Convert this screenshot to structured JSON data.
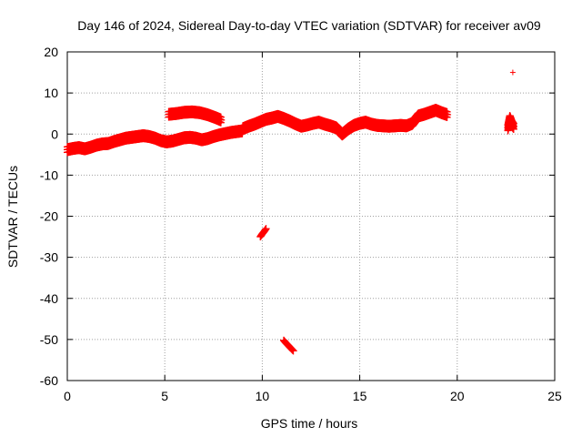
{
  "chart_data": {
    "type": "scatter",
    "title": "Day 146 of 2024, Sidereal Day-to-day VTEC variation (SDTVAR) for receiver av09",
    "xlabel": "GPS time / hours",
    "ylabel": "SDTVAR / TECUs",
    "xlim": [
      0,
      25
    ],
    "ylim": [
      -60,
      20
    ],
    "xticks": [
      0,
      5,
      10,
      15,
      20,
      25
    ],
    "yticks": [
      -60,
      -50,
      -40,
      -30,
      -20,
      -10,
      0,
      10,
      20
    ],
    "grid": true,
    "marker": "+",
    "series_color": "#ff0000",
    "segments": [
      {
        "name": "main-trace-early",
        "x": [
          0.0,
          0.3,
          0.6,
          0.9,
          1.2,
          1.5,
          1.8,
          2.1,
          2.4,
          2.7,
          3.0,
          3.3,
          3.6,
          3.9,
          4.2,
          4.5,
          4.8,
          5.1,
          5.4,
          5.7,
          6.0,
          6.3,
          6.6,
          6.9,
          7.2,
          7.5,
          7.8,
          8.1,
          8.4,
          8.7,
          9.0
        ],
        "y": [
          -3.8,
          -3.5,
          -3.3,
          -3.6,
          -3.2,
          -2.7,
          -2.4,
          -2.3,
          -1.8,
          -1.4,
          -1.0,
          -0.8,
          -0.6,
          -0.4,
          -0.6,
          -1.0,
          -1.6,
          -1.9,
          -1.7,
          -1.3,
          -0.9,
          -0.8,
          -1.0,
          -1.4,
          -1.1,
          -0.6,
          -0.2,
          0.1,
          0.4,
          0.6,
          0.8
        ]
      },
      {
        "name": "main-trace-arc",
        "x": [
          5.2,
          5.6,
          6.0,
          6.4,
          6.8,
          7.2,
          7.6,
          7.9
        ],
        "y": [
          4.8,
          5.0,
          5.3,
          5.4,
          5.2,
          4.7,
          4.0,
          3.4
        ]
      },
      {
        "name": "main-trace-late",
        "x": [
          9.0,
          9.3,
          9.6,
          9.9,
          10.2,
          10.5,
          10.8,
          11.1,
          11.4,
          11.7,
          12.0,
          12.3,
          12.6,
          12.9,
          13.2,
          13.5,
          13.8,
          14.1,
          14.4,
          14.7,
          15.0,
          15.3,
          15.6,
          15.9,
          16.2,
          16.5,
          16.8,
          17.1,
          17.4,
          17.7,
          18.0,
          18.3,
          18.6,
          18.9,
          19.2,
          19.5
        ],
        "y": [
          1.3,
          1.9,
          2.4,
          3.0,
          3.6,
          3.9,
          4.3,
          3.8,
          3.2,
          2.5,
          1.9,
          2.2,
          2.6,
          2.9,
          2.4,
          2.0,
          1.5,
          0.0,
          1.2,
          2.1,
          2.6,
          2.9,
          2.4,
          2.1,
          2.0,
          1.9,
          2.0,
          2.1,
          2.0,
          2.6,
          4.4,
          4.8,
          5.3,
          5.8,
          5.2,
          4.7
        ]
      },
      {
        "name": "outlier-cluster-1",
        "x": [
          9.9,
          10.0,
          10.1,
          10.2
        ],
        "y": [
          -25.0,
          -24.3,
          -23.7,
          -23.0
        ]
      },
      {
        "name": "outlier-cluster-2",
        "x": [
          11.1,
          11.2,
          11.3,
          11.4,
          11.5,
          11.6
        ],
        "y": [
          -50.2,
          -50.8,
          -51.3,
          -51.8,
          -52.3,
          -52.8
        ]
      },
      {
        "name": "late-cluster",
        "x": [
          22.6,
          22.7,
          22.8,
          22.9
        ],
        "y": [
          1.5,
          3.8,
          2.5,
          1.8
        ]
      },
      {
        "name": "late-outlier",
        "x": [
          22.85
        ],
        "y": [
          15.0
        ]
      }
    ]
  }
}
